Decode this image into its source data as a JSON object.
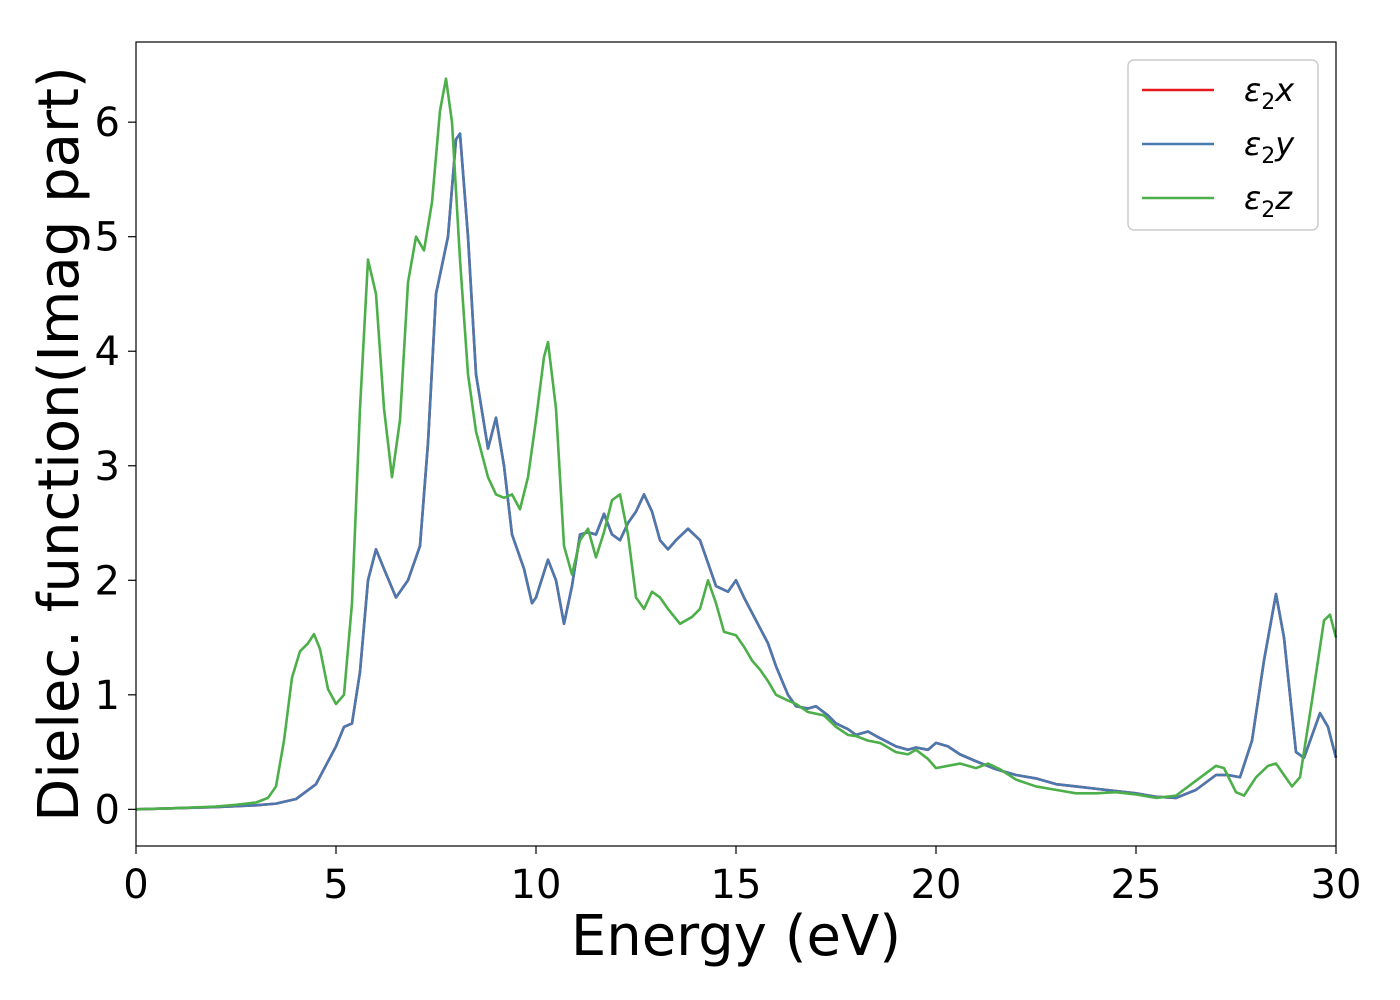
{
  "chart_data": {
    "type": "line",
    "title": "",
    "xlabel": "Energy (eV)",
    "ylabel": "Dielec. function(Imag part)",
    "xlim": [
      0,
      30
    ],
    "ylim": [
      -0.32,
      6.7
    ],
    "xticks": [
      0,
      5,
      10,
      15,
      20,
      25,
      30
    ],
    "yticks": [
      0,
      1,
      2,
      3,
      4,
      5,
      6
    ],
    "grid": false,
    "legend_position": "top-right",
    "series": [
      {
        "name": "ε₂x",
        "legend_base": "ε",
        "legend_sub": "2",
        "legend_var": "x",
        "color": "#e41a1c",
        "points": [
          [
            0,
            0.0
          ],
          [
            1,
            0.01
          ],
          [
            2,
            0.02
          ],
          [
            3,
            0.035
          ],
          [
            3.5,
            0.05
          ],
          [
            4,
            0.09
          ],
          [
            4.5,
            0.22
          ],
          [
            5,
            0.55
          ],
          [
            5.2,
            0.72
          ],
          [
            5.4,
            0.75
          ],
          [
            5.6,
            1.2
          ],
          [
            5.8,
            2.0
          ],
          [
            6.0,
            2.27
          ],
          [
            6.2,
            2.1
          ],
          [
            6.5,
            1.85
          ],
          [
            6.8,
            2.0
          ],
          [
            7.1,
            2.3
          ],
          [
            7.3,
            3.2
          ],
          [
            7.5,
            4.5
          ],
          [
            7.8,
            5.0
          ],
          [
            8.0,
            5.85
          ],
          [
            8.1,
            5.9
          ],
          [
            8.3,
            5.0
          ],
          [
            8.5,
            3.8
          ],
          [
            8.8,
            3.15
          ],
          [
            9.0,
            3.42
          ],
          [
            9.2,
            3.0
          ],
          [
            9.4,
            2.4
          ],
          [
            9.7,
            2.1
          ],
          [
            9.9,
            1.8
          ],
          [
            10.0,
            1.85
          ],
          [
            10.3,
            2.18
          ],
          [
            10.5,
            2.0
          ],
          [
            10.7,
            1.62
          ],
          [
            10.9,
            1.95
          ],
          [
            11.1,
            2.4
          ],
          [
            11.3,
            2.42
          ],
          [
            11.5,
            2.4
          ],
          [
            11.7,
            2.58
          ],
          [
            11.9,
            2.4
          ],
          [
            12.1,
            2.35
          ],
          [
            12.3,
            2.5
          ],
          [
            12.5,
            2.6
          ],
          [
            12.7,
            2.75
          ],
          [
            12.9,
            2.6
          ],
          [
            13.1,
            2.35
          ],
          [
            13.3,
            2.27
          ],
          [
            13.5,
            2.35
          ],
          [
            13.8,
            2.45
          ],
          [
            14.1,
            2.35
          ],
          [
            14.3,
            2.15
          ],
          [
            14.5,
            1.95
          ],
          [
            14.8,
            1.9
          ],
          [
            15.0,
            2.0
          ],
          [
            15.2,
            1.85
          ],
          [
            15.5,
            1.65
          ],
          [
            15.8,
            1.45
          ],
          [
            16.0,
            1.25
          ],
          [
            16.3,
            1.0
          ],
          [
            16.5,
            0.9
          ],
          [
            16.8,
            0.88
          ],
          [
            17.0,
            0.9
          ],
          [
            17.3,
            0.82
          ],
          [
            17.5,
            0.75
          ],
          [
            17.8,
            0.7
          ],
          [
            18.0,
            0.65
          ],
          [
            18.3,
            0.68
          ],
          [
            18.5,
            0.64
          ],
          [
            19.0,
            0.55
          ],
          [
            19.3,
            0.52
          ],
          [
            19.5,
            0.54
          ],
          [
            19.8,
            0.52
          ],
          [
            20.0,
            0.58
          ],
          [
            20.3,
            0.55
          ],
          [
            20.6,
            0.48
          ],
          [
            21.0,
            0.42
          ],
          [
            21.5,
            0.35
          ],
          [
            22,
            0.3
          ],
          [
            22.5,
            0.27
          ],
          [
            23,
            0.22
          ],
          [
            23.5,
            0.2
          ],
          [
            24,
            0.18
          ],
          [
            24.5,
            0.16
          ],
          [
            25,
            0.14
          ],
          [
            25.5,
            0.11
          ],
          [
            26,
            0.1
          ],
          [
            26.5,
            0.17
          ],
          [
            27.0,
            0.3
          ],
          [
            27.3,
            0.3
          ],
          [
            27.6,
            0.28
          ],
          [
            27.9,
            0.6
          ],
          [
            28.2,
            1.3
          ],
          [
            28.5,
            1.88
          ],
          [
            28.7,
            1.5
          ],
          [
            29.0,
            0.5
          ],
          [
            29.2,
            0.45
          ],
          [
            29.6,
            0.84
          ],
          [
            29.8,
            0.72
          ],
          [
            30,
            0.45
          ]
        ]
      },
      {
        "name": "ε₂y",
        "legend_base": "ε",
        "legend_sub": "2",
        "legend_var": "y",
        "color": "#4a79b0",
        "points": [
          [
            0,
            0.0
          ],
          [
            1,
            0.01
          ],
          [
            2,
            0.02
          ],
          [
            3,
            0.035
          ],
          [
            3.5,
            0.05
          ],
          [
            4,
            0.09
          ],
          [
            4.5,
            0.22
          ],
          [
            5,
            0.55
          ],
          [
            5.2,
            0.72
          ],
          [
            5.4,
            0.75
          ],
          [
            5.6,
            1.2
          ],
          [
            5.8,
            2.0
          ],
          [
            6.0,
            2.27
          ],
          [
            6.2,
            2.1
          ],
          [
            6.5,
            1.85
          ],
          [
            6.8,
            2.0
          ],
          [
            7.1,
            2.3
          ],
          [
            7.3,
            3.2
          ],
          [
            7.5,
            4.5
          ],
          [
            7.8,
            5.0
          ],
          [
            8.0,
            5.85
          ],
          [
            8.1,
            5.9
          ],
          [
            8.3,
            5.0
          ],
          [
            8.5,
            3.8
          ],
          [
            8.8,
            3.15
          ],
          [
            9.0,
            3.42
          ],
          [
            9.2,
            3.0
          ],
          [
            9.4,
            2.4
          ],
          [
            9.7,
            2.1
          ],
          [
            9.9,
            1.8
          ],
          [
            10.0,
            1.85
          ],
          [
            10.3,
            2.18
          ],
          [
            10.5,
            2.0
          ],
          [
            10.7,
            1.62
          ],
          [
            10.9,
            1.95
          ],
          [
            11.1,
            2.4
          ],
          [
            11.3,
            2.42
          ],
          [
            11.5,
            2.4
          ],
          [
            11.7,
            2.58
          ],
          [
            11.9,
            2.4
          ],
          [
            12.1,
            2.35
          ],
          [
            12.3,
            2.5
          ],
          [
            12.5,
            2.6
          ],
          [
            12.7,
            2.75
          ],
          [
            12.9,
            2.6
          ],
          [
            13.1,
            2.35
          ],
          [
            13.3,
            2.27
          ],
          [
            13.5,
            2.35
          ],
          [
            13.8,
            2.45
          ],
          [
            14.1,
            2.35
          ],
          [
            14.3,
            2.15
          ],
          [
            14.5,
            1.95
          ],
          [
            14.8,
            1.9
          ],
          [
            15.0,
            2.0
          ],
          [
            15.2,
            1.85
          ],
          [
            15.5,
            1.65
          ],
          [
            15.8,
            1.45
          ],
          [
            16.0,
            1.25
          ],
          [
            16.3,
            1.0
          ],
          [
            16.5,
            0.9
          ],
          [
            16.8,
            0.88
          ],
          [
            17.0,
            0.9
          ],
          [
            17.3,
            0.82
          ],
          [
            17.5,
            0.75
          ],
          [
            17.8,
            0.7
          ],
          [
            18.0,
            0.65
          ],
          [
            18.3,
            0.68
          ],
          [
            18.5,
            0.64
          ],
          [
            19.0,
            0.55
          ],
          [
            19.3,
            0.52
          ],
          [
            19.5,
            0.54
          ],
          [
            19.8,
            0.52
          ],
          [
            20.0,
            0.58
          ],
          [
            20.3,
            0.55
          ],
          [
            20.6,
            0.48
          ],
          [
            21.0,
            0.42
          ],
          [
            21.5,
            0.35
          ],
          [
            22,
            0.3
          ],
          [
            22.5,
            0.27
          ],
          [
            23,
            0.22
          ],
          [
            23.5,
            0.2
          ],
          [
            24,
            0.18
          ],
          [
            24.5,
            0.16
          ],
          [
            25,
            0.14
          ],
          [
            25.5,
            0.11
          ],
          [
            26,
            0.1
          ],
          [
            26.5,
            0.17
          ],
          [
            27.0,
            0.3
          ],
          [
            27.3,
            0.3
          ],
          [
            27.6,
            0.28
          ],
          [
            27.9,
            0.6
          ],
          [
            28.2,
            1.3
          ],
          [
            28.5,
            1.88
          ],
          [
            28.7,
            1.5
          ],
          [
            29.0,
            0.5
          ],
          [
            29.2,
            0.45
          ],
          [
            29.6,
            0.84
          ],
          [
            29.8,
            0.72
          ],
          [
            30,
            0.45
          ]
        ]
      },
      {
        "name": "ε₂z",
        "legend_base": "ε",
        "legend_sub": "2",
        "legend_var": "z",
        "color": "#4daf4a",
        "points": [
          [
            0,
            0.0
          ],
          [
            1,
            0.01
          ],
          [
            2,
            0.025
          ],
          [
            2.5,
            0.04
          ],
          [
            3.0,
            0.06
          ],
          [
            3.3,
            0.1
          ],
          [
            3.5,
            0.2
          ],
          [
            3.7,
            0.6
          ],
          [
            3.9,
            1.15
          ],
          [
            4.1,
            1.38
          ],
          [
            4.3,
            1.45
          ],
          [
            4.45,
            1.53
          ],
          [
            4.6,
            1.4
          ],
          [
            4.8,
            1.05
          ],
          [
            5.0,
            0.92
          ],
          [
            5.2,
            1.0
          ],
          [
            5.4,
            1.8
          ],
          [
            5.6,
            3.5
          ],
          [
            5.8,
            4.8
          ],
          [
            6.0,
            4.5
          ],
          [
            6.2,
            3.5
          ],
          [
            6.4,
            2.9
          ],
          [
            6.6,
            3.4
          ],
          [
            6.8,
            4.6
          ],
          [
            7.0,
            5.0
          ],
          [
            7.2,
            4.88
          ],
          [
            7.4,
            5.3
          ],
          [
            7.6,
            6.1
          ],
          [
            7.75,
            6.38
          ],
          [
            7.9,
            6.0
          ],
          [
            8.1,
            4.8
          ],
          [
            8.3,
            3.8
          ],
          [
            8.5,
            3.3
          ],
          [
            8.8,
            2.9
          ],
          [
            9.0,
            2.75
          ],
          [
            9.2,
            2.72
          ],
          [
            9.4,
            2.75
          ],
          [
            9.6,
            2.62
          ],
          [
            9.8,
            2.9
          ],
          [
            10.0,
            3.4
          ],
          [
            10.2,
            3.95
          ],
          [
            10.3,
            4.08
          ],
          [
            10.5,
            3.5
          ],
          [
            10.7,
            2.3
          ],
          [
            10.9,
            2.05
          ],
          [
            11.1,
            2.35
          ],
          [
            11.3,
            2.45
          ],
          [
            11.5,
            2.2
          ],
          [
            11.7,
            2.42
          ],
          [
            11.9,
            2.7
          ],
          [
            12.1,
            2.75
          ],
          [
            12.3,
            2.4
          ],
          [
            12.5,
            1.85
          ],
          [
            12.7,
            1.75
          ],
          [
            12.9,
            1.9
          ],
          [
            13.1,
            1.85
          ],
          [
            13.3,
            1.75
          ],
          [
            13.6,
            1.62
          ],
          [
            13.9,
            1.68
          ],
          [
            14.1,
            1.75
          ],
          [
            14.3,
            2.0
          ],
          [
            14.5,
            1.8
          ],
          [
            14.7,
            1.55
          ],
          [
            15.0,
            1.52
          ],
          [
            15.2,
            1.42
          ],
          [
            15.4,
            1.3
          ],
          [
            15.6,
            1.22
          ],
          [
            15.8,
            1.12
          ],
          [
            16.0,
            1.0
          ],
          [
            16.3,
            0.95
          ],
          [
            16.5,
            0.92
          ],
          [
            16.8,
            0.85
          ],
          [
            17.2,
            0.82
          ],
          [
            17.5,
            0.72
          ],
          [
            17.8,
            0.65
          ],
          [
            18.0,
            0.64
          ],
          [
            18.3,
            0.6
          ],
          [
            18.6,
            0.58
          ],
          [
            19.0,
            0.5
          ],
          [
            19.3,
            0.48
          ],
          [
            19.5,
            0.52
          ],
          [
            19.8,
            0.44
          ],
          [
            20.0,
            0.36
          ],
          [
            20.3,
            0.38
          ],
          [
            20.6,
            0.4
          ],
          [
            21.0,
            0.36
          ],
          [
            21.3,
            0.4
          ],
          [
            21.6,
            0.35
          ],
          [
            22,
            0.26
          ],
          [
            22.5,
            0.2
          ],
          [
            23,
            0.17
          ],
          [
            23.5,
            0.14
          ],
          [
            24,
            0.14
          ],
          [
            24.5,
            0.15
          ],
          [
            25,
            0.13
          ],
          [
            25.5,
            0.1
          ],
          [
            26,
            0.12
          ],
          [
            26.5,
            0.25
          ],
          [
            27.0,
            0.38
          ],
          [
            27.2,
            0.36
          ],
          [
            27.5,
            0.15
          ],
          [
            27.7,
            0.12
          ],
          [
            28.0,
            0.28
          ],
          [
            28.3,
            0.38
          ],
          [
            28.5,
            0.4
          ],
          [
            28.7,
            0.3
          ],
          [
            28.9,
            0.2
          ],
          [
            29.1,
            0.28
          ],
          [
            29.4,
            0.95
          ],
          [
            29.7,
            1.65
          ],
          [
            29.85,
            1.7
          ],
          [
            30,
            1.5
          ]
        ]
      }
    ]
  }
}
